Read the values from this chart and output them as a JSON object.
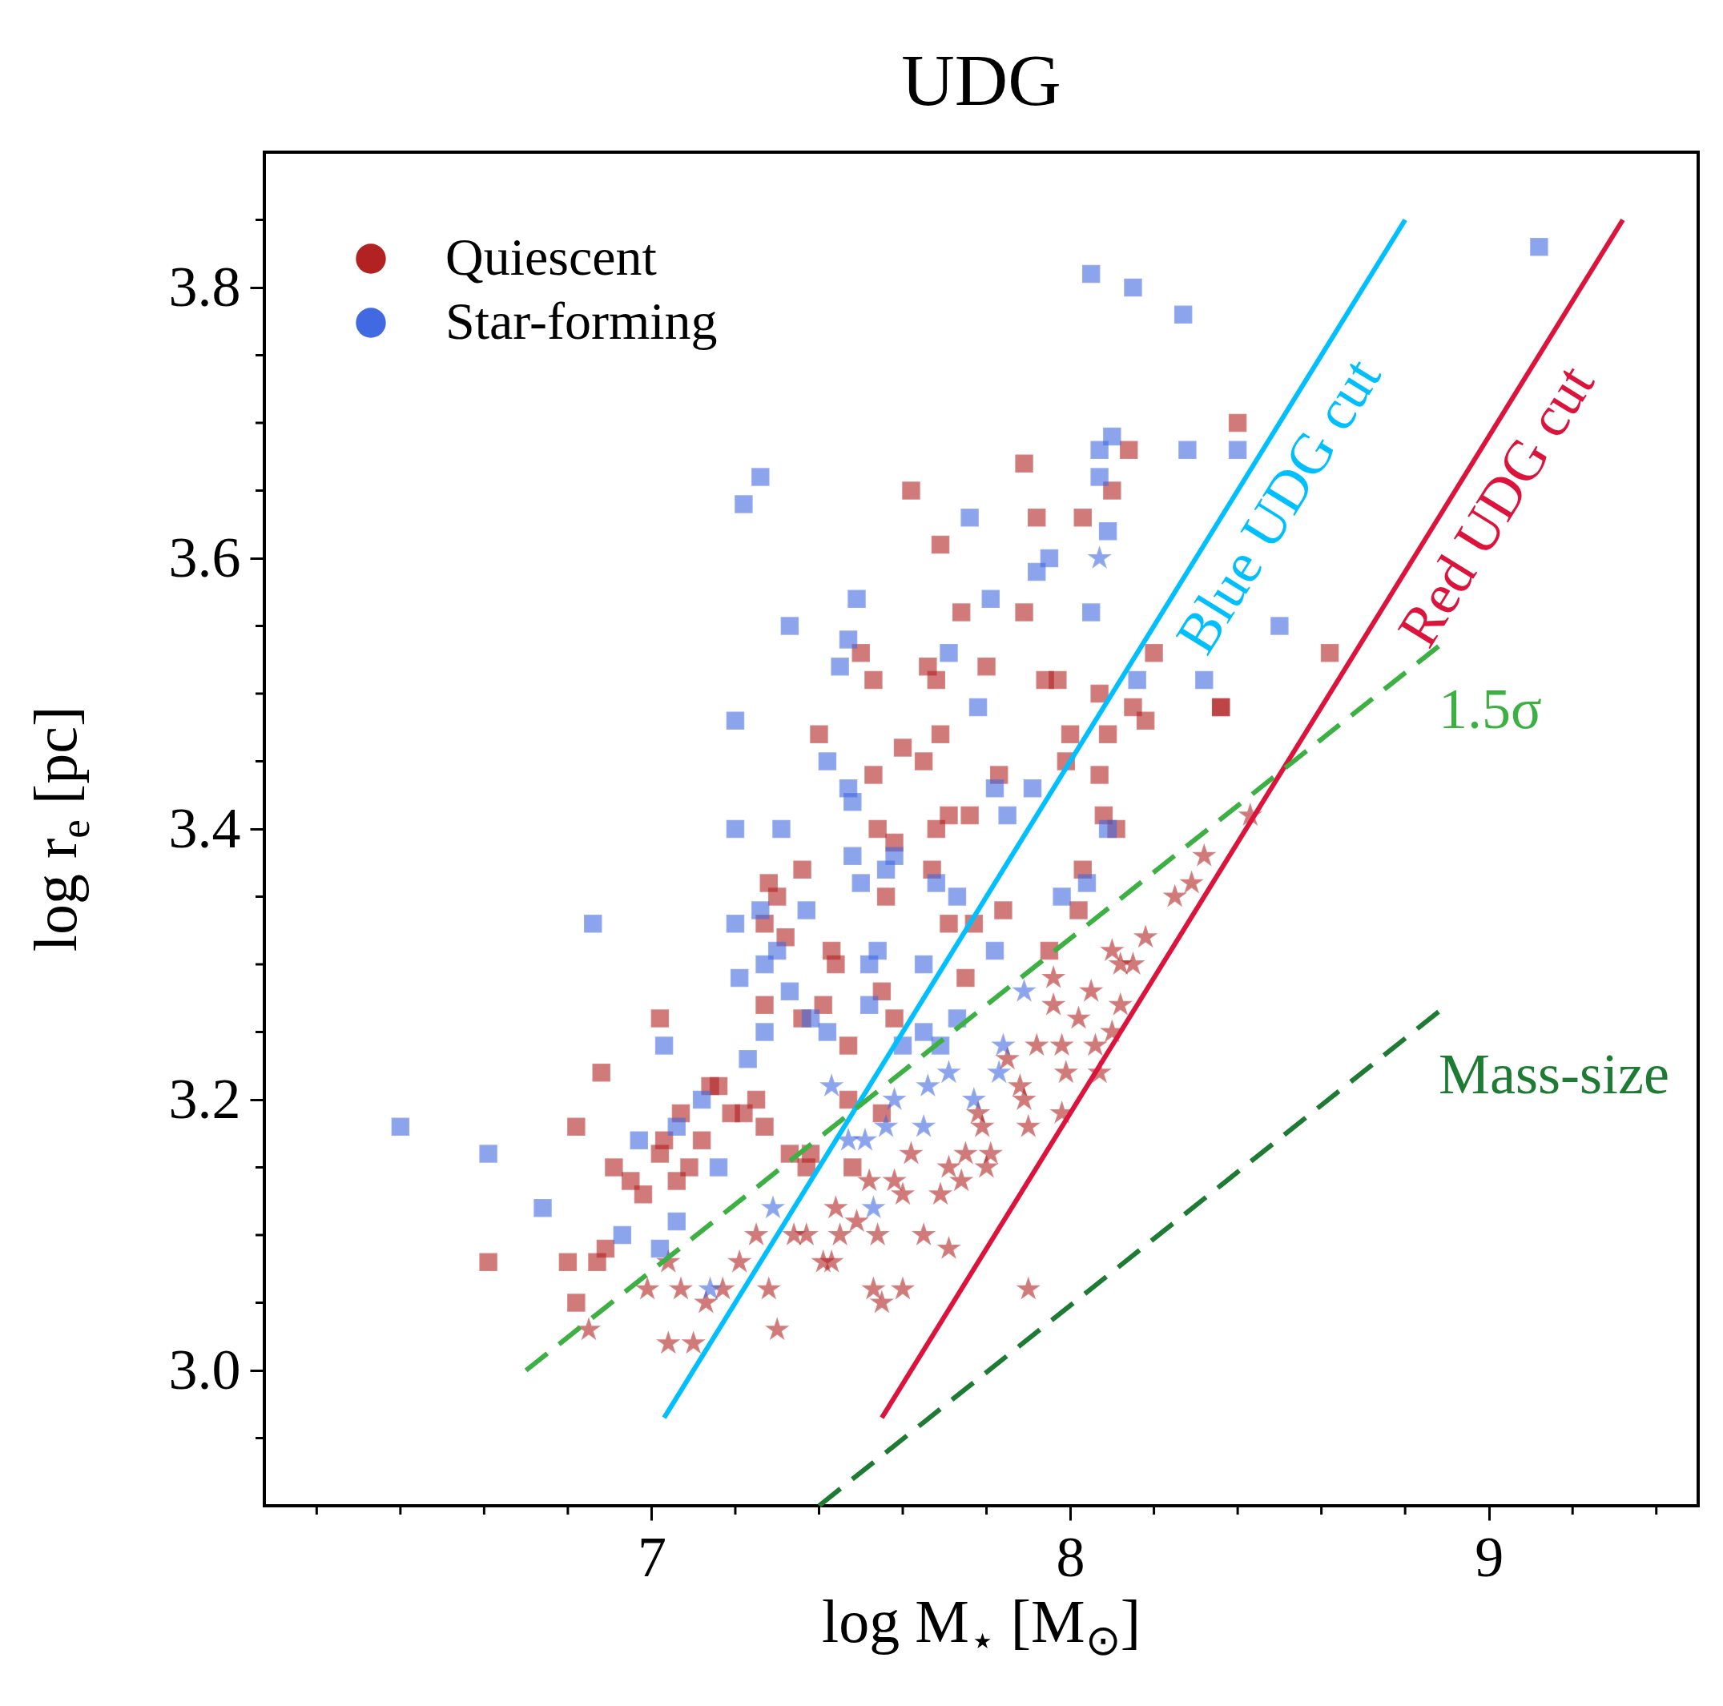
{
  "chart_data": {
    "type": "scatter",
    "title": "UDG",
    "xlabel": "log M$_{⋆}$ [M$_{⊙}$]",
    "ylabel": "log r$_{e}$ [pc]",
    "xlim": [
      6.075,
      9.5
    ],
    "ylim": [
      2.9,
      3.9
    ],
    "xticks": [
      {
        "value": 6.2,
        "label": null
      },
      {
        "value": 6.4,
        "label": null
      },
      {
        "value": 6.6,
        "label": null
      },
      {
        "value": 6.8,
        "label": null
      },
      7,
      {
        "value": 7.2,
        "label": null
      },
      {
        "value": 7.4,
        "label": null
      },
      {
        "value": 7.6,
        "label": null
      },
      {
        "value": 7.8,
        "label": null
      },
      8,
      {
        "value": 8.2,
        "label": null
      },
      {
        "value": 8.4,
        "label": null
      },
      {
        "value": 8.6,
        "label": null
      },
      {
        "value": 8.8,
        "label": null
      },
      9,
      {
        "value": 9.2,
        "label": null
      },
      {
        "value": 9.4,
        "label": null
      }
    ],
    "yticks": [
      {
        "value": 2.95,
        "label": null
      },
      {
        "value": 3,
        "label": "3.0"
      },
      {
        "value": 3.05,
        "label": null
      },
      {
        "value": 3.1,
        "label": null
      },
      {
        "value": 3.15,
        "label": null
      },
      3.2,
      {
        "value": 3.25,
        "label": null
      },
      {
        "value": 3.3,
        "label": null
      },
      {
        "value": 3.35,
        "label": null
      },
      3.4,
      {
        "value": 3.45,
        "label": null
      },
      {
        "value": 3.5,
        "label": null
      },
      {
        "value": 3.55,
        "label": null
      },
      3.6,
      {
        "value": 3.65,
        "label": null
      },
      {
        "value": 3.7,
        "label": null
      },
      {
        "value": 3.75,
        "label": null
      },
      3.8,
      {
        "value": 3.85,
        "label": null
      }
    ],
    "legend": "top left",
    "grid": false,
    "series": [
      {
        "name": "Quiescent",
        "type": "scatter",
        "marker": "square",
        "color": "#b22222",
        "x": [
          6.61,
          6.8,
          6.82,
          6.88,
          6.87,
          6.82,
          6.89,
          6.91,
          6.95,
          6.98,
          7.02,
          7.02,
          7.03,
          7.07,
          7.06,
          7.09,
          7.12,
          7.14,
          7.16,
          7.19,
          7.22,
          7.25,
          7.27,
          7.27,
          7.3,
          7.28,
          7.27,
          7.32,
          7.36,
          7.36,
          7.33,
          7.37,
          7.38,
          7.4,
          7.41,
          7.43,
          7.44,
          7.47,
          7.47,
          7.5,
          7.53,
          7.53,
          7.54,
          7.55,
          7.56,
          7.58,
          7.58,
          7.6,
          7.62,
          7.65,
          7.66,
          7.68,
          7.68,
          7.69,
          7.69,
          7.67,
          7.71,
          7.71,
          7.74,
          7.76,
          7.77,
          7.75,
          7.8,
          7.83,
          7.84,
          7.89,
          7.89,
          7.92,
          7.94,
          7.97,
          7.95,
          7.99,
          8.0,
          8.03,
          8.03,
          8.07,
          8.07,
          8.08,
          8.09,
          8.1,
          8.11,
          8.14,
          8.15,
          8.18,
          8.2,
          8.36,
          8.36,
          8.4,
          8.62,
          8.02,
          7.48,
          7.55
        ],
        "values": [
          3.08,
          3.08,
          3.18,
          3.22,
          3.08,
          3.05,
          3.09,
          3.15,
          3.14,
          3.13,
          3.26,
          3.16,
          3.17,
          3.19,
          3.14,
          3.15,
          3.17,
          3.21,
          3.21,
          3.19,
          3.19,
          3.2,
          3.18,
          3.27,
          3.35,
          3.36,
          3.33,
          3.32,
          3.37,
          3.26,
          3.16,
          3.15,
          3.16,
          3.47,
          3.27,
          3.31,
          3.3,
          3.24,
          3.2,
          3.53,
          3.51,
          3.44,
          3.4,
          3.28,
          3.35,
          3.39,
          3.26,
          3.46,
          3.65,
          3.45,
          3.52,
          3.51,
          3.4,
          3.61,
          3.47,
          3.37,
          3.33,
          3.41,
          3.56,
          3.41,
          3.33,
          3.29,
          3.52,
          3.44,
          3.34,
          3.67,
          3.56,
          3.63,
          3.51,
          3.51,
          3.31,
          3.45,
          3.47,
          3.63,
          3.37,
          3.5,
          3.44,
          3.41,
          3.47,
          3.65,
          3.4,
          3.68,
          3.49,
          3.48,
          3.53,
          3.49,
          3.49,
          3.7,
          3.53,
          3.34,
          3.15,
          3.19
        ]
      },
      {
        "type": "scatter",
        "marker": "star",
        "color": "#b22222",
        "x": [
          6.85,
          6.99,
          7.04,
          7.1,
          7.13,
          7.17,
          7.07,
          7.04,
          7.21,
          7.25,
          7.28,
          7.3,
          7.34,
          7.37,
          7.41,
          7.44,
          7.45,
          7.49,
          7.52,
          7.54,
          7.55,
          7.6,
          7.58,
          7.6,
          7.62,
          7.65,
          7.69,
          7.71,
          7.71,
          7.74,
          7.75,
          7.78,
          7.79,
          7.8,
          7.81,
          7.85,
          7.88,
          7.89,
          7.9,
          7.92,
          7.96,
          7.96,
          7.98,
          7.99,
          7.98,
          8.02,
          8.05,
          8.06,
          8.07,
          8.1,
          8.12,
          8.12,
          8.18,
          8.25,
          8.29,
          8.32,
          8.43,
          8.15,
          8.1,
          7.9,
          7.53,
          7.43
        ],
        "values": [
          3.03,
          3.06,
          3.02,
          3.02,
          3.05,
          3.06,
          3.06,
          3.08,
          3.08,
          3.1,
          3.06,
          3.03,
          3.1,
          3.1,
          3.08,
          3.12,
          3.1,
          3.11,
          3.14,
          3.1,
          3.05,
          3.06,
          3.14,
          3.13,
          3.16,
          3.1,
          3.13,
          3.09,
          3.15,
          3.14,
          3.16,
          3.19,
          3.18,
          3.15,
          3.16,
          3.23,
          3.21,
          3.2,
          3.18,
          3.24,
          3.29,
          3.27,
          3.24,
          3.22,
          3.19,
          3.26,
          3.28,
          3.24,
          3.22,
          3.25,
          3.3,
          3.27,
          3.32,
          3.35,
          3.36,
          3.38,
          3.41,
          3.3,
          3.31,
          3.06,
          3.06,
          3.08
        ]
      },
      {
        "name": "Star-forming",
        "type": "scatter",
        "marker": "square",
        "color": "#4169e1",
        "x": [
          6.4,
          6.61,
          6.74,
          6.86,
          6.93,
          6.97,
          7.02,
          7.03,
          7.06,
          7.06,
          7.12,
          7.16,
          7.2,
          7.2,
          7.2,
          7.21,
          7.22,
          7.26,
          7.26,
          7.27,
          7.3,
          7.31,
          7.33,
          7.33,
          7.37,
          7.27,
          7.23,
          7.42,
          7.47,
          7.48,
          7.45,
          7.47,
          7.49,
          7.48,
          7.5,
          7.52,
          7.56,
          7.58,
          7.54,
          7.65,
          7.68,
          7.71,
          7.73,
          7.76,
          7.78,
          7.81,
          7.82,
          7.85,
          7.82,
          7.91,
          7.92,
          7.95,
          7.98,
          8.04,
          8.05,
          8.05,
          8.07,
          8.07,
          8.09,
          8.1,
          8.15,
          8.16,
          8.09,
          8.27,
          8.28,
          8.32,
          8.4,
          8.5,
          9.12,
          7.69,
          7.6,
          7.52,
          7.65,
          7.73,
          7.38,
          7.42
        ],
        "values": [
          3.18,
          3.16,
          3.12,
          3.33,
          3.1,
          3.17,
          3.09,
          3.24,
          3.11,
          3.18,
          3.2,
          3.15,
          3.48,
          3.4,
          3.33,
          3.29,
          3.64,
          3.66,
          3.34,
          3.3,
          3.31,
          3.4,
          3.55,
          3.28,
          3.34,
          3.25,
          3.23,
          3.45,
          3.43,
          3.42,
          3.52,
          3.54,
          3.57,
          3.38,
          3.36,
          3.27,
          3.37,
          3.38,
          3.31,
          3.3,
          3.36,
          3.53,
          3.35,
          3.63,
          3.49,
          3.57,
          3.43,
          3.41,
          3.31,
          3.43,
          3.59,
          3.6,
          3.35,
          3.36,
          3.81,
          3.56,
          3.66,
          3.68,
          3.62,
          3.69,
          3.8,
          3.51,
          3.4,
          3.78,
          3.68,
          3.51,
          3.68,
          3.55,
          3.83,
          3.24,
          3.24,
          3.3,
          3.25,
          3.26,
          3.26,
          3.25
        ]
      },
      {
        "type": "scatter",
        "marker": "star",
        "color": "#4169e1",
        "x": [
          8.07,
          7.89,
          7.84,
          7.83,
          7.77,
          7.71,
          7.66,
          7.58,
          7.51,
          7.47,
          7.56,
          7.65,
          7.53,
          7.29,
          7.14,
          7.43
        ],
        "values": [
          3.6,
          3.28,
          3.24,
          3.22,
          3.2,
          3.22,
          3.21,
          3.2,
          3.17,
          3.17,
          3.18,
          3.18,
          3.12,
          3.12,
          3.06,
          3.21
        ]
      },
      {
        "name": "Blue UDG cut",
        "type": "line",
        "line_style": "solid",
        "color": "#00bfff",
        "x": [
          7.03,
          8.8
        ],
        "values": [
          2.965,
          3.85
        ]
      },
      {
        "name": "Red UDG cut",
        "type": "line",
        "line_style": "solid",
        "color": "#dc143c",
        "x": [
          7.55,
          9.32
        ],
        "values": [
          2.965,
          3.85
        ]
      },
      {
        "name": "1.5σ",
        "type": "line",
        "line_style": "dashed",
        "color": "#3cb043",
        "x": [
          6.7,
          8.88
        ],
        "values": [
          3.0,
          3.535
        ]
      },
      {
        "name": "Mass-size",
        "type": "line",
        "line_style": "dashed",
        "color": "#1e7b34",
        "x": [
          7.4,
          8.88
        ],
        "values": [
          2.9,
          3.265
        ]
      }
    ]
  }
}
